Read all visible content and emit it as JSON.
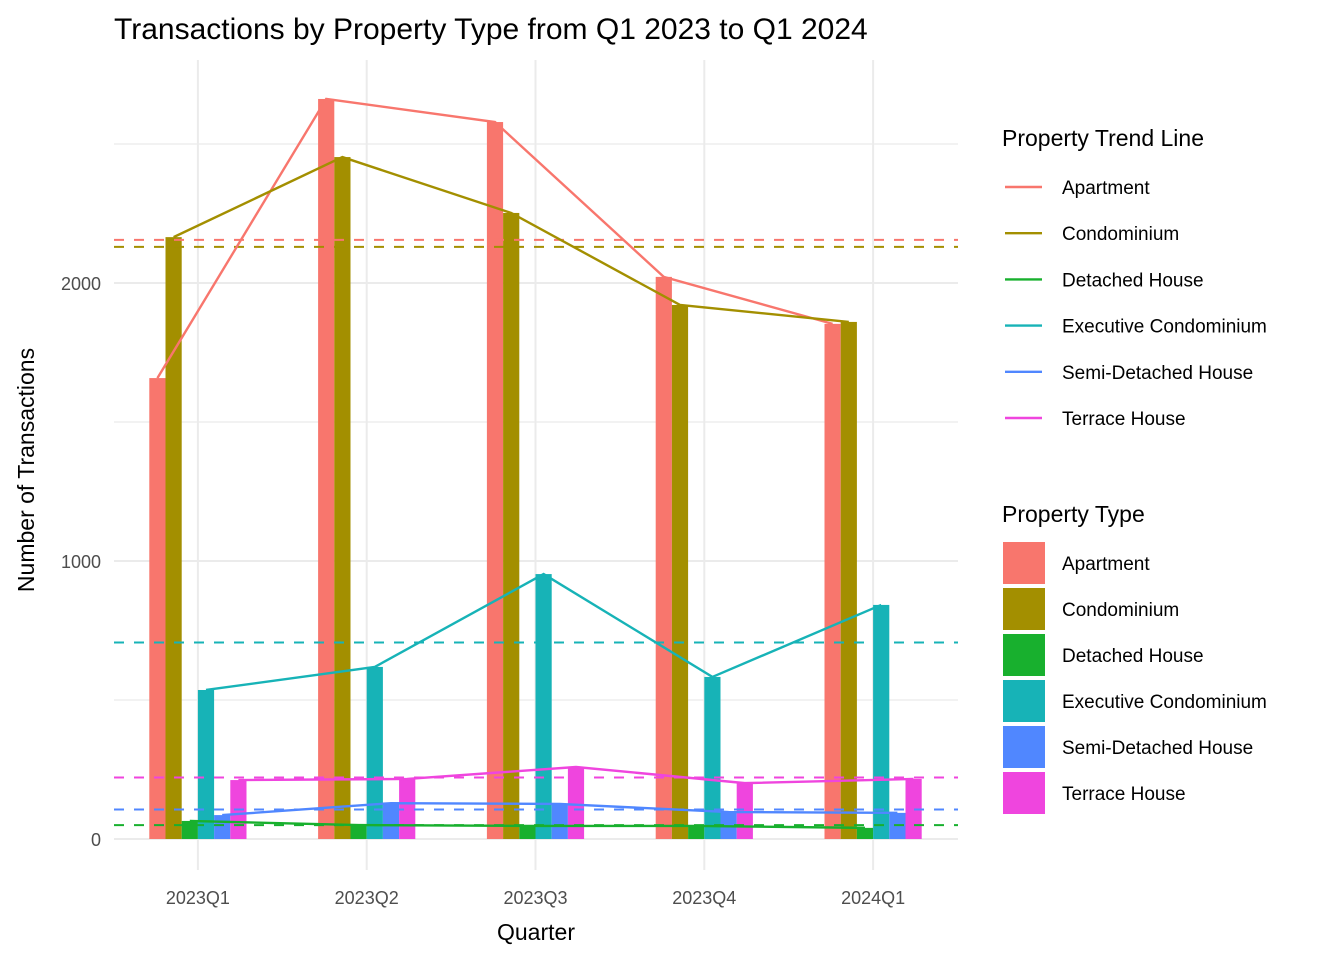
{
  "chart_data": {
    "type": "bar",
    "title": "Transactions by Property Type from Q1 2023 to Q1 2024",
    "xlabel": "Quarter",
    "ylabel": "Number of Transactions",
    "categories": [
      "2023Q1",
      "2023Q2",
      "2023Q3",
      "2023Q4",
      "2024Q1"
    ],
    "ylim": [
      -110,
      2800
    ],
    "yticks": [
      0,
      1000,
      2000
    ],
    "yminor": [
      500,
      1500,
      2500
    ],
    "grid": true,
    "series": [
      {
        "name": "Apartment",
        "color": "#F8766D",
        "values": [
          1658,
          2662,
          2579,
          2022,
          1853
        ],
        "mean": 2155
      },
      {
        "name": "Condominium",
        "color": "#A38F00",
        "values": [
          2165,
          2453,
          2252,
          1921,
          1860
        ],
        "mean": 2130
      },
      {
        "name": "Detached House",
        "color": "#18B02E",
        "values": [
          65,
          50,
          47,
          47,
          40
        ],
        "mean": 50
      },
      {
        "name": "Executive Condominium",
        "color": "#17B3B7",
        "values": [
          536,
          619,
          953,
          583,
          842
        ],
        "mean": 707
      },
      {
        "name": "Semi-Detached House",
        "color": "#5087FF",
        "values": [
          86,
          129,
          126,
          97,
          94
        ],
        "mean": 106
      },
      {
        "name": "Terrace House",
        "color": "#EF45DE",
        "values": [
          212,
          216,
          259,
          201,
          216
        ],
        "mean": 221
      }
    ],
    "overlays": {
      "trend_lines": "solid line per property type connecting quarterly values",
      "mean_lines": "dashed horizontal line per property type at its average"
    },
    "legends": [
      {
        "title": "Property Trend Line",
        "kind": "line",
        "placement": "right-top"
      },
      {
        "title": "Property Type",
        "kind": "fill",
        "placement": "right-bottom"
      }
    ]
  }
}
